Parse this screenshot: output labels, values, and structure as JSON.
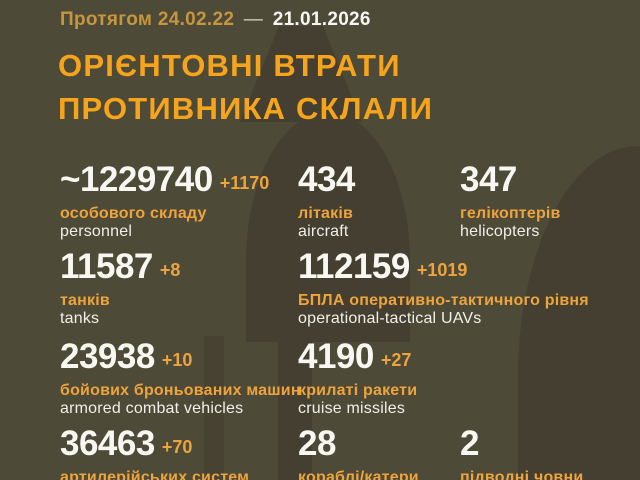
{
  "header": {
    "period_label": "Протягом 24.02.22",
    "dash": "—",
    "date": "21.01.2026"
  },
  "title": {
    "line1": "ОРІЄНТОВНІ ВТРАТИ",
    "line2": "ПРОТИВНИКА СКЛАЛИ"
  },
  "colors": {
    "background": "#4e4a38",
    "watermark": "#443f30",
    "title_orange": "#f7a41d",
    "label_gold": "#eda43c",
    "header_gold": "#c6963e",
    "text_white": "#f8f7f2"
  },
  "chart_data": {
    "type": "table",
    "title": "ОРІЄНТОВНІ ВТРАТИ ПРОТИВНИКА СКЛАЛИ",
    "period": "Протягом 24.02.22 — 21.01.2026",
    "columns": [
      "label_ua",
      "label_en",
      "total",
      "daily_change"
    ],
    "rows": [
      [
        "особового складу",
        "personnel",
        "~1229740",
        "+1170"
      ],
      [
        "літаків",
        "aircraft",
        "434",
        ""
      ],
      [
        "гелікоптерів",
        "helicopters",
        "347",
        ""
      ],
      [
        "танків",
        "tanks",
        "11587",
        "+8"
      ],
      [
        "БПЛА оперативно-тактичного рівня",
        "operational-tactical UAVs",
        "112159",
        "+1019"
      ],
      [
        "бойових броньованих машин",
        "armored combat vehicles",
        "23938",
        "+10"
      ],
      [
        "крилаті ракети",
        "cruise missiles",
        "4190",
        "+27"
      ],
      [
        "артилерійських систем",
        "",
        "36463",
        "+70"
      ],
      [
        "кораблі/катери",
        "",
        "28",
        ""
      ],
      [
        "підводні човни",
        "",
        "2",
        ""
      ]
    ]
  }
}
